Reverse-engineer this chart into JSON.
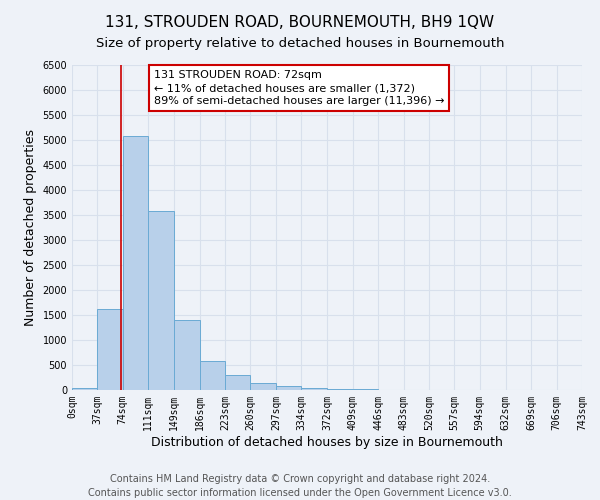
{
  "title": "131, STROUDEN ROAD, BOURNEMOUTH, BH9 1QW",
  "subtitle": "Size of property relative to detached houses in Bournemouth",
  "xlabel": "Distribution of detached houses by size in Bournemouth",
  "ylabel": "Number of detached properties",
  "bar_edges": [
    0,
    37,
    74,
    111,
    149,
    186,
    223,
    260,
    297,
    334,
    372,
    409,
    446,
    483,
    520,
    557,
    594,
    632,
    669,
    706,
    743
  ],
  "bar_heights": [
    50,
    1620,
    5080,
    3580,
    1410,
    590,
    300,
    140,
    80,
    50,
    30,
    20,
    10,
    5,
    3,
    2,
    1,
    1,
    1,
    1
  ],
  "bar_color": "#b8d0ea",
  "bar_edgecolor": "#6aaad4",
  "property_line_x": 72,
  "property_line_color": "#cc0000",
  "ylim": [
    0,
    6500
  ],
  "xlim": [
    0,
    743
  ],
  "annotation_line1": "131 STROUDEN ROAD: 72sqm",
  "annotation_line2": "← 11% of detached houses are smaller (1,372)",
  "annotation_line3": "89% of semi-detached houses are larger (11,396) →",
  "annotation_box_color": "#ffffff",
  "annotation_box_edgecolor": "#cc0000",
  "tick_labels": [
    "0sqm",
    "37sqm",
    "74sqm",
    "111sqm",
    "149sqm",
    "186sqm",
    "223sqm",
    "260sqm",
    "297sqm",
    "334sqm",
    "372sqm",
    "409sqm",
    "446sqm",
    "483sqm",
    "520sqm",
    "557sqm",
    "594sqm",
    "632sqm",
    "669sqm",
    "706sqm",
    "743sqm"
  ],
  "footer_line1": "Contains HM Land Registry data © Crown copyright and database right 2024.",
  "footer_line2": "Contains public sector information licensed under the Open Government Licence v3.0.",
  "background_color": "#eef2f8",
  "grid_color": "#d8e0ec",
  "title_fontsize": 11,
  "subtitle_fontsize": 9.5,
  "axis_label_fontsize": 9,
  "tick_fontsize": 7,
  "annotation_fontsize": 8,
  "footer_fontsize": 7
}
